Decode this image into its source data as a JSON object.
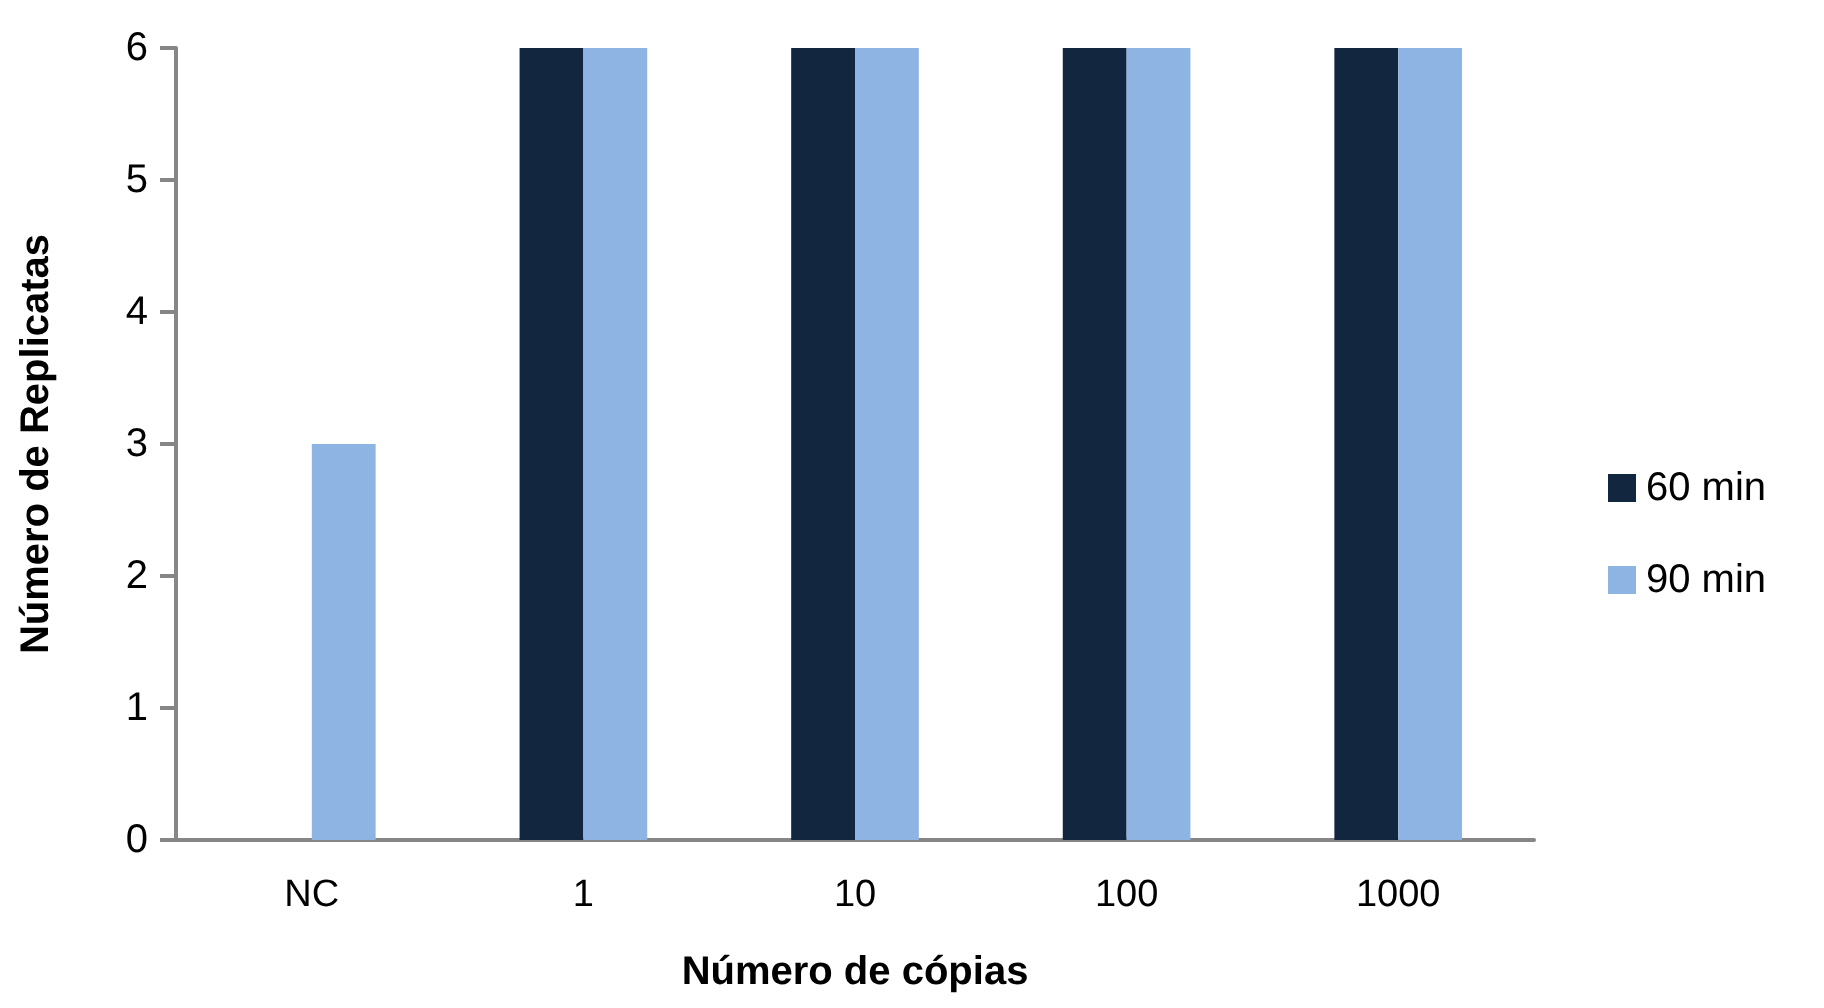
{
  "chart_data": {
    "type": "bar",
    "xlabel": "Número de cópias",
    "ylabel": "Número de Replicatas",
    "categories": [
      "NC",
      "1",
      "10",
      "100",
      "1000"
    ],
    "series": [
      {
        "name": "60 min",
        "color": "#13263f",
        "values": [
          0,
          6,
          6,
          6,
          6
        ]
      },
      {
        "name": "90 min",
        "color": "#8eb4e3",
        "values": [
          3,
          6,
          6,
          6,
          6
        ]
      }
    ],
    "ylim": [
      0,
      6
    ],
    "yticks": [
      0,
      1,
      2,
      3,
      4,
      5,
      6
    ],
    "grid": false,
    "legend": "right"
  }
}
